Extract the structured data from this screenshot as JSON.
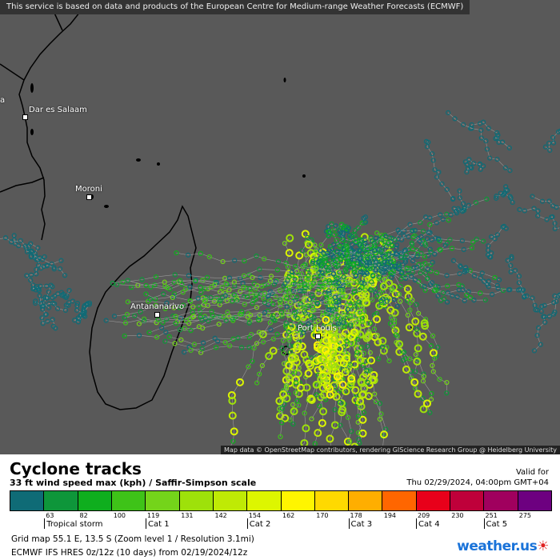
{
  "header": {
    "notice": "This service is based on data and products of the European Centre for Medium-range Weather Forecasts (ECMWF)"
  },
  "map": {
    "cities": [
      {
        "name": "Dar es Salaam"
      },
      {
        "name": "Moroni"
      },
      {
        "name": "Antananarivo"
      },
      {
        "name": "Port Louis"
      }
    ],
    "edge_label": "a",
    "attribution": "Map data © OpenStreetMap contributors, rendering GIScience Research Group @ Heidelberg University",
    "background": "#595959"
  },
  "legend": {
    "title": "Cyclone tracks",
    "subtitle": "33 ft wind speed max (kph) / Saffir-Simpson scale",
    "valid_label": "Valid for",
    "valid_date": "Thu 02/29/2024, 04:00pm GMT+04",
    "colors": [
      "#0f6b76",
      "#0e963a",
      "#0fae1e",
      "#3ec318",
      "#74d41a",
      "#9ee10a",
      "#bfea05",
      "#ddf600",
      "#fff500",
      "#ffd900",
      "#ffae00",
      "#ff6600",
      "#e8001a",
      "#bf003a",
      "#a0005e",
      "#6d0080"
    ],
    "ticks": [
      "63",
      "82",
      "100",
      "119",
      "131",
      "142",
      "154",
      "162",
      "170",
      "178",
      "194",
      "209",
      "230",
      "251",
      "275"
    ],
    "categories": [
      "Tropical storm",
      "Cat 1",
      "Cat 2",
      "Cat 3",
      "Cat 4",
      "Cat 5"
    ],
    "grid_info": "Grid map 55.1 E, 13.5 S (Zoom level 1 / Resolution 3.1mi)",
    "model_info": "ECMWF IFS HRES 0z/12z (10 days) from  02/19/2024/12z",
    "logo_text": "weather.us"
  }
}
